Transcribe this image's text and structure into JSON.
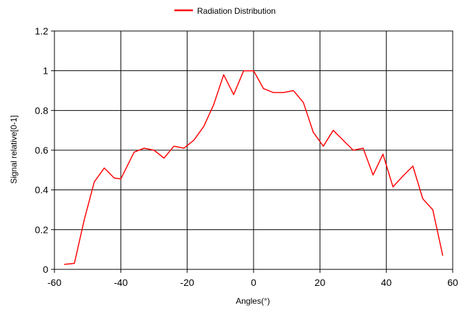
{
  "chart_data": {
    "type": "line",
    "title": "",
    "xlabel": "Angles(°)",
    "ylabel": "Signal relative[0-1]",
    "xlim": [
      -60,
      60
    ],
    "ylim": [
      0,
      1.2
    ],
    "x_ticks": [
      -60,
      -40,
      -20,
      0,
      20,
      40,
      60
    ],
    "y_ticks": [
      0,
      0.2,
      0.4,
      0.6,
      0.8,
      1,
      1.2
    ],
    "x_tick_labels": [
      "-60",
      "-40",
      "-20",
      "0",
      "20",
      "40",
      "60"
    ],
    "y_tick_labels": [
      "0",
      "0.2",
      "0.4",
      "0.6",
      "0.8",
      "1",
      "1.2"
    ],
    "grid": true,
    "legend_position": "top-center",
    "series": [
      {
        "name": "Radiation Distribution",
        "color": "#ff0000",
        "x": [
          -57,
          -54,
          -51,
          -48,
          -45,
          -42,
          -40,
          -36,
          -33,
          -30,
          -27,
          -24,
          -21,
          -18,
          -15,
          -12,
          -9,
          -6,
          -3,
          0,
          3,
          6,
          9,
          12,
          15,
          18,
          21,
          24,
          27,
          30,
          33,
          36,
          39,
          42,
          45,
          48,
          51,
          54,
          57
        ],
        "values": [
          0.025,
          0.03,
          0.25,
          0.44,
          0.51,
          0.46,
          0.455,
          0.59,
          0.61,
          0.6,
          0.56,
          0.62,
          0.61,
          0.65,
          0.72,
          0.83,
          0.98,
          0.88,
          1.0,
          1.0,
          0.91,
          0.89,
          0.89,
          0.9,
          0.84,
          0.69,
          0.62,
          0.7,
          0.65,
          0.6,
          0.61,
          0.475,
          0.58,
          0.415,
          0.47,
          0.52,
          0.355,
          0.3,
          0.07
        ]
      }
    ]
  }
}
